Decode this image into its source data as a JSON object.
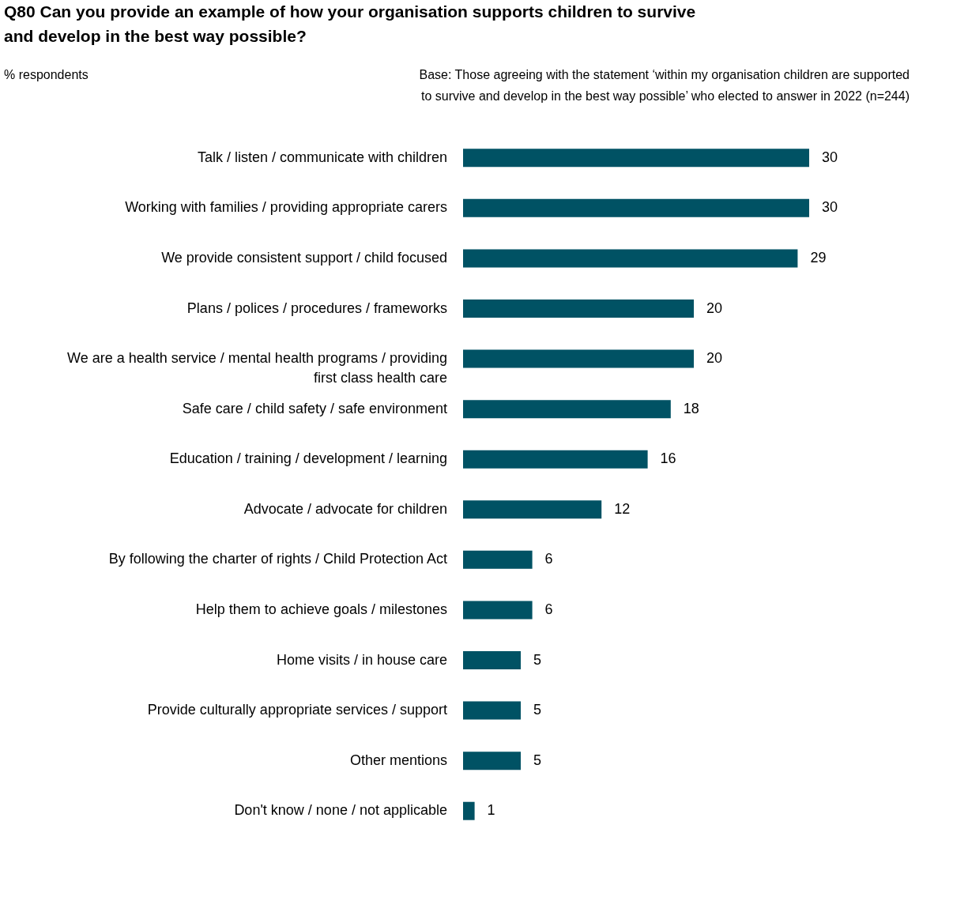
{
  "chart_data": {
    "type": "bar",
    "orientation": "horizontal",
    "title": "Q80 Can you provide an example of how your organisation supports children to survive and develop in the best way possible?",
    "annotations": [
      "% respondents",
      "Base: Those agreeing with the statement ‘within my organisation children are supported to survive and develop in the best way possible’ who elected to answer in 2022 (n=244)"
    ],
    "categories": [
      "Talk / listen / communicate with children",
      "Working with families / providing appropriate carers",
      "We provide consistent support / child focused",
      "Plans / polices / procedures / frameworks",
      "We are a health service / mental health programs / providing first class health care",
      "Safe care / child safety / safe environment",
      "Education / training / development / learning",
      "Advocate / advocate for children",
      "By following the charter of rights / Child Protection Act",
      "Help them to achieve goals / milestones",
      "Home visits / in house care",
      "Provide culturally appropriate services / support",
      "Other mentions",
      "Don't know / none / not applicable"
    ],
    "values": [
      30,
      30,
      29,
      20,
      20,
      18,
      16,
      12,
      6,
      6,
      5,
      5,
      5,
      1
    ],
    "color": "#005264",
    "data_labels": true
  }
}
